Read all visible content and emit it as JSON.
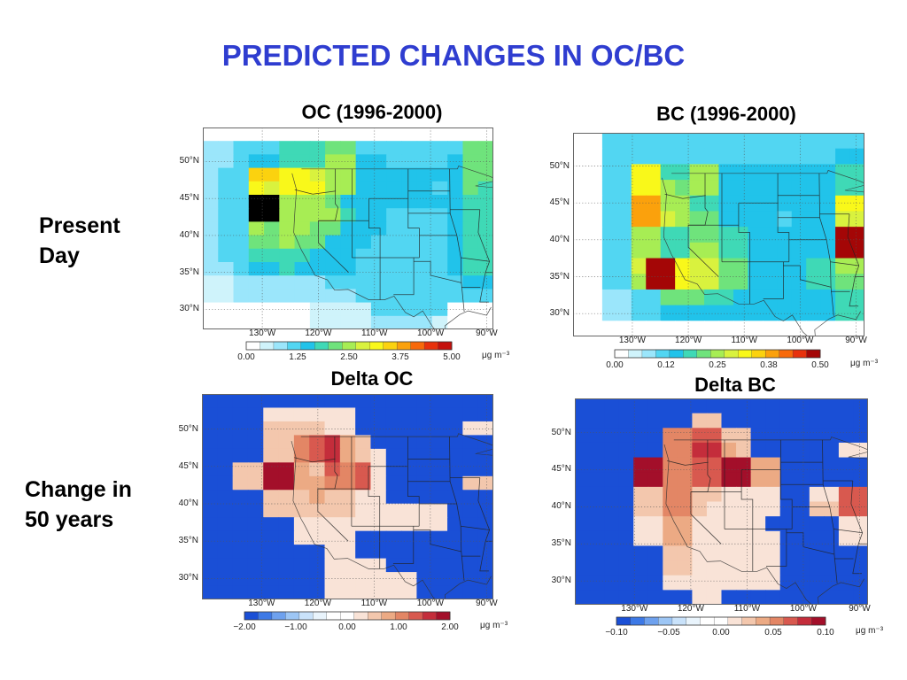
{
  "slide": {
    "title": "PREDICTED CHANGES IN OC/BC",
    "row_labels": [
      "Present\nDay",
      "Change in\n50 years"
    ]
  },
  "chart_data": [
    {
      "type": "heatmap",
      "title": "OC (1996-2000)",
      "x_ticks": [
        "130°W",
        "120°W",
        "110°W",
        "100°W",
        "90°W"
      ],
      "y_ticks": [
        "50°N",
        "45°N",
        "40°N",
        "35°N",
        "30°N"
      ],
      "colorbar_ticks": [
        "0.00",
        "1.25",
        "2.50",
        "3.75",
        "5.00"
      ],
      "colorbar_range": [
        0,
        5
      ],
      "unit": "μg m⁻³",
      "colors": [
        "#ffffff",
        "#cff3fb",
        "#9be6fb",
        "#52d6f2",
        "#21c3ea",
        "#3fd9b6",
        "#6fe37c",
        "#a7ed54",
        "#d9f23e",
        "#f9f81a",
        "#fbd20f",
        "#fba10c",
        "#f8690a",
        "#e8310c",
        "#c4100c"
      ],
      "grid": [
        [
          0,
          0,
          0,
          0,
          0,
          0,
          0,
          0,
          0,
          0,
          0,
          0,
          0,
          0,
          0,
          0,
          0,
          0,
          0
        ],
        [
          2,
          2,
          3,
          3,
          3,
          5,
          5,
          5,
          6,
          6,
          3,
          3,
          3,
          3,
          3,
          3,
          3,
          6,
          6
        ],
        [
          2,
          2,
          3,
          4,
          4,
          5,
          5,
          5,
          7,
          7,
          4,
          4,
          3,
          3,
          3,
          3,
          4,
          6,
          6
        ],
        [
          2,
          3,
          3,
          10,
          10,
          9,
          9,
          8,
          7,
          7,
          4,
          4,
          4,
          4,
          4,
          4,
          4,
          6,
          6
        ],
        [
          2,
          3,
          3,
          9,
          8,
          9,
          9,
          9,
          7,
          7,
          4,
          4,
          4,
          4,
          4,
          3,
          4,
          6,
          5
        ],
        [
          2,
          3,
          3,
          15,
          15,
          7,
          7,
          7,
          6,
          4,
          4,
          4,
          4,
          4,
          4,
          4,
          4,
          5,
          5
        ],
        [
          2,
          3,
          3,
          15,
          15,
          7,
          7,
          7,
          7,
          5,
          4,
          4,
          3,
          3,
          3,
          3,
          4,
          5,
          5
        ],
        [
          2,
          3,
          3,
          7,
          6,
          7,
          7,
          6,
          6,
          4,
          4,
          4,
          3,
          3,
          3,
          3,
          4,
          5,
          5
        ],
        [
          2,
          3,
          3,
          6,
          6,
          7,
          6,
          6,
          4,
          4,
          4,
          3,
          3,
          3,
          3,
          3,
          4,
          5,
          5
        ],
        [
          2,
          3,
          3,
          5,
          5,
          5,
          5,
          4,
          4,
          4,
          3,
          3,
          3,
          3,
          3,
          3,
          4,
          5,
          5
        ],
        [
          2,
          2,
          3,
          4,
          4,
          5,
          4,
          4,
          4,
          4,
          3,
          3,
          3,
          3,
          3,
          3,
          4,
          5,
          5
        ],
        [
          1,
          1,
          2,
          2,
          2,
          2,
          2,
          2,
          3,
          3,
          3,
          3,
          3,
          3,
          3,
          3,
          3,
          4,
          4
        ],
        [
          1,
          1,
          2,
          2,
          2,
          2,
          2,
          2,
          2,
          2,
          3,
          3,
          3,
          3,
          3,
          3,
          3,
          3,
          3
        ],
        [
          0,
          0,
          0,
          0,
          0,
          0,
          0,
          1,
          1,
          1,
          1,
          3,
          3,
          3,
          3,
          3,
          0,
          0,
          0
        ],
        [
          0,
          0,
          0,
          0,
          0,
          0,
          0,
          1,
          1,
          1,
          1,
          2,
          2,
          2,
          2,
          1,
          0,
          0,
          0
        ]
      ]
    },
    {
      "type": "heatmap",
      "title": "BC (1996-2000)",
      "x_ticks": [
        "130°W",
        "120°W",
        "110°W",
        "100°W",
        "90°W"
      ],
      "y_ticks": [
        "50°N",
        "45°N",
        "40°N",
        "35°N",
        "30°N"
      ],
      "colorbar_ticks": [
        "0.00",
        "0.12",
        "0.25",
        "0.38",
        "0.50"
      ],
      "colorbar_range": [
        0,
        0.5
      ],
      "unit": "μg m⁻³",
      "colors": [
        "#ffffff",
        "#cff3fb",
        "#9be6fb",
        "#52d6f2",
        "#21c3ea",
        "#3fd9b6",
        "#6fe37c",
        "#a7ed54",
        "#d9f23e",
        "#f9f81a",
        "#fbd20f",
        "#fba10c",
        "#f8690a",
        "#e8310c",
        "#a40606"
      ],
      "grid": [
        [
          0,
          0,
          3,
          3,
          3,
          3,
          3,
          3,
          3,
          3,
          3,
          3,
          3,
          3,
          3,
          3,
          3,
          3,
          3,
          3
        ],
        [
          0,
          0,
          3,
          3,
          3,
          3,
          3,
          3,
          3,
          3,
          3,
          3,
          3,
          3,
          3,
          3,
          3,
          3,
          4,
          4
        ],
        [
          0,
          0,
          3,
          3,
          9,
          9,
          5,
          5,
          7,
          7,
          4,
          4,
          4,
          4,
          4,
          4,
          4,
          4,
          5,
          5
        ],
        [
          0,
          0,
          3,
          3,
          9,
          9,
          7,
          6,
          7,
          7,
          4,
          4,
          4,
          4,
          4,
          4,
          4,
          4,
          5,
          5
        ],
        [
          0,
          0,
          3,
          3,
          11,
          11,
          7,
          7,
          5,
          5,
          4,
          4,
          4,
          4,
          4,
          4,
          4,
          4,
          9,
          9
        ],
        [
          0,
          0,
          3,
          3,
          11,
          11,
          8,
          7,
          6,
          6,
          4,
          4,
          4,
          4,
          3,
          4,
          4,
          4,
          8,
          8
        ],
        [
          0,
          0,
          3,
          3,
          7,
          7,
          5,
          5,
          6,
          6,
          5,
          5,
          4,
          4,
          4,
          4,
          4,
          4,
          14,
          14
        ],
        [
          0,
          0,
          3,
          3,
          7,
          7,
          5,
          5,
          7,
          7,
          5,
          5,
          4,
          4,
          4,
          4,
          4,
          4,
          14,
          14
        ],
        [
          0,
          0,
          3,
          3,
          8,
          14,
          14,
          9,
          8,
          8,
          6,
          6,
          4,
          4,
          4,
          4,
          5,
          5,
          7,
          7
        ],
        [
          0,
          0,
          3,
          3,
          7,
          14,
          14,
          9,
          8,
          8,
          6,
          6,
          4,
          4,
          4,
          4,
          5,
          5,
          6,
          6
        ],
        [
          0,
          0,
          2,
          2,
          3,
          3,
          6,
          6,
          6,
          5,
          5,
          4,
          4,
          4,
          4,
          4,
          4,
          4,
          5,
          5
        ],
        [
          0,
          0,
          2,
          2,
          3,
          3,
          4,
          4,
          4,
          4,
          4,
          4,
          4,
          4,
          4,
          4,
          4,
          4,
          5,
          5
        ],
        [
          0,
          0,
          0,
          0,
          0,
          0,
          0,
          0,
          0,
          0,
          0,
          0,
          0,
          0,
          0,
          0,
          0,
          0,
          0,
          0
        ]
      ]
    },
    {
      "type": "heatmap",
      "title": "Delta OC",
      "x_ticks": [
        "130°W",
        "120°W",
        "110°W",
        "100°W",
        "90°W"
      ],
      "y_ticks": [
        "50°N",
        "45°N",
        "40°N",
        "35°N",
        "30°N"
      ],
      "colorbar_ticks": [
        "−2.00",
        "−1.00",
        "0.00",
        "1.00",
        "2.00"
      ],
      "colorbar_range": [
        -2,
        2
      ],
      "unit": "μg m⁻³",
      "colors": [
        "#1a4fd6",
        "#3d79e6",
        "#6ea1ee",
        "#9dc6f5",
        "#c9e2fa",
        "#e9f4fc",
        "#ffffff",
        "#ffffff",
        "#f9e3d7",
        "#f3c7ad",
        "#ecaa84",
        "#e38665",
        "#d8594f",
        "#c42d3b",
        "#a30f2a"
      ],
      "grid": [
        [
          0,
          0,
          0,
          0,
          0,
          0,
          0,
          0,
          0,
          0,
          0,
          0,
          0,
          0,
          0,
          0,
          0,
          0,
          0
        ],
        [
          0,
          0,
          0,
          0,
          8,
          8,
          8,
          8,
          8,
          8,
          0,
          0,
          0,
          0,
          0,
          0,
          0,
          0,
          0
        ],
        [
          0,
          0,
          0,
          0,
          9,
          9,
          9,
          9,
          8,
          8,
          0,
          0,
          0,
          0,
          0,
          0,
          0,
          8,
          8
        ],
        [
          0,
          0,
          0,
          0,
          9,
          9,
          11,
          12,
          13,
          10,
          9,
          0,
          0,
          0,
          0,
          0,
          0,
          0,
          0
        ],
        [
          0,
          0,
          0,
          0,
          9,
          9,
          11,
          12,
          13,
          10,
          9,
          8,
          0,
          0,
          0,
          0,
          0,
          0,
          0
        ],
        [
          0,
          0,
          9,
          9,
          14,
          14,
          10,
          9,
          12,
          11,
          12,
          8,
          0,
          0,
          0,
          0,
          0,
          0,
          0
        ],
        [
          0,
          0,
          9,
          9,
          14,
          14,
          10,
          10,
          11,
          11,
          12,
          8,
          0,
          0,
          0,
          0,
          0,
          9,
          9
        ],
        [
          0,
          0,
          0,
          0,
          9,
          9,
          9,
          10,
          9,
          9,
          8,
          8,
          0,
          0,
          0,
          0,
          0,
          0,
          0
        ],
        [
          0,
          0,
          0,
          0,
          9,
          9,
          9,
          9,
          9,
          9,
          8,
          8,
          8,
          8,
          8,
          8,
          0,
          0,
          0
        ],
        [
          0,
          0,
          0,
          0,
          0,
          0,
          8,
          8,
          8,
          8,
          8,
          8,
          8,
          8,
          8,
          8,
          0,
          0,
          0
        ],
        [
          0,
          0,
          0,
          0,
          0,
          0,
          8,
          8,
          8,
          8,
          0,
          0,
          0,
          0,
          0,
          0,
          0,
          0,
          0
        ],
        [
          0,
          0,
          0,
          0,
          0,
          0,
          0,
          0,
          8,
          8,
          0,
          0,
          0,
          0,
          0,
          0,
          0,
          0,
          0
        ],
        [
          0,
          0,
          0,
          0,
          0,
          0,
          0,
          0,
          8,
          8,
          8,
          8,
          0,
          0,
          0,
          0,
          0,
          0,
          0
        ],
        [
          0,
          0,
          0,
          0,
          0,
          0,
          0,
          0,
          8,
          8,
          8,
          8,
          8,
          8,
          0,
          0,
          0,
          0,
          0
        ],
        [
          0,
          0,
          0,
          0,
          0,
          0,
          0,
          0,
          8,
          8,
          8,
          8,
          8,
          8,
          0,
          0,
          0,
          0,
          0
        ]
      ]
    },
    {
      "type": "heatmap",
      "title": "Delta BC",
      "x_ticks": [
        "130°W",
        "120°W",
        "110°W",
        "100°W",
        "90°W"
      ],
      "y_ticks": [
        "50°N",
        "45°N",
        "40°N",
        "35°N",
        "30°N"
      ],
      "colorbar_ticks": [
        "−0.10",
        "−0.05",
        "0.00",
        "0.05",
        "0.10"
      ],
      "colorbar_range": [
        -0.1,
        0.1
      ],
      "unit": "μg m⁻³",
      "colors": [
        "#1a4fd6",
        "#3d79e6",
        "#6ea1ee",
        "#9dc6f5",
        "#c9e2fa",
        "#e9f4fc",
        "#ffffff",
        "#ffffff",
        "#f9e3d7",
        "#f3c7ad",
        "#ecaa84",
        "#e38665",
        "#d8594f",
        "#c42d3b",
        "#a30f2a"
      ],
      "grid": [
        [
          0,
          0,
          0,
          0,
          0,
          0,
          0,
          0,
          0,
          0,
          0,
          0,
          0,
          0,
          0,
          0,
          0,
          0,
          0,
          0
        ],
        [
          0,
          0,
          0,
          0,
          0,
          0,
          0,
          0,
          9,
          9,
          0,
          0,
          0,
          0,
          0,
          0,
          0,
          0,
          0,
          0
        ],
        [
          0,
          0,
          0,
          0,
          0,
          0,
          11,
          11,
          12,
          12,
          9,
          9,
          0,
          0,
          0,
          0,
          0,
          0,
          0,
          0
        ],
        [
          0,
          0,
          0,
          0,
          0,
          0,
          11,
          11,
          13,
          13,
          10,
          9,
          0,
          0,
          0,
          0,
          0,
          0,
          8,
          8
        ],
        [
          0,
          0,
          0,
          0,
          14,
          14,
          11,
          11,
          12,
          12,
          14,
          14,
          10,
          10,
          0,
          0,
          0,
          0,
          0,
          0
        ],
        [
          0,
          0,
          0,
          0,
          14,
          14,
          11,
          11,
          12,
          12,
          14,
          14,
          10,
          10,
          0,
          0,
          0,
          0,
          0,
          0
        ],
        [
          0,
          0,
          0,
          0,
          9,
          9,
          11,
          11,
          9,
          9,
          8,
          8,
          8,
          8,
          0,
          0,
          8,
          8,
          12,
          12
        ],
        [
          0,
          0,
          0,
          0,
          9,
          9,
          11,
          11,
          9,
          8,
          8,
          8,
          8,
          8,
          0,
          0,
          9,
          9,
          12,
          12
        ],
        [
          0,
          0,
          0,
          0,
          8,
          8,
          10,
          10,
          8,
          8,
          8,
          8,
          8,
          0,
          0,
          0,
          0,
          0,
          8,
          8
        ],
        [
          0,
          0,
          0,
          0,
          8,
          8,
          10,
          10,
          8,
          8,
          8,
          8,
          8,
          8,
          0,
          0,
          0,
          0,
          8,
          8
        ],
        [
          0,
          0,
          0,
          0,
          0,
          0,
          9,
          9,
          8,
          8,
          8,
          8,
          8,
          8,
          0,
          0,
          0,
          0,
          0,
          0
        ],
        [
          0,
          0,
          0,
          0,
          0,
          0,
          9,
          9,
          8,
          8,
          8,
          8,
          8,
          8,
          0,
          0,
          0,
          0,
          0,
          0
        ],
        [
          0,
          0,
          0,
          0,
          0,
          0,
          8,
          8,
          8,
          8,
          8,
          8,
          8,
          8,
          0,
          0,
          0,
          0,
          0,
          0
        ],
        [
          0,
          0,
          0,
          0,
          0,
          0,
          0,
          0,
          8,
          8,
          0,
          0,
          0,
          0,
          0,
          0,
          0,
          0,
          0,
          0
        ]
      ]
    }
  ]
}
